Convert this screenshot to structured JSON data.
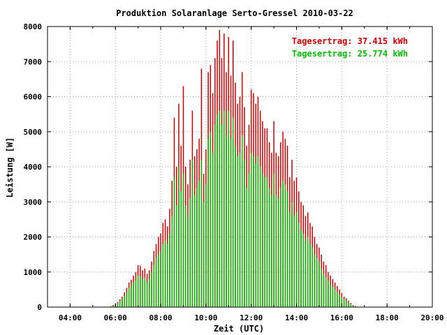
{
  "chart_data": {
    "type": "bar",
    "title": "Produktion Solaranlage Serto-Gressel 2010-03-22",
    "xlabel": "Zeit (UTC)",
    "ylabel": "Leistung [W]",
    "xlim": [
      3,
      20
    ],
    "ylim": [
      0,
      8000
    ],
    "grid": true,
    "legend_position": "top-right",
    "x_ticks": [
      "04:00",
      "06:00",
      "08:00",
      "10:00",
      "12:00",
      "14:00",
      "16:00",
      "18:00",
      "20:00"
    ],
    "x_tick_values": [
      4,
      6,
      8,
      10,
      12,
      14,
      16,
      18,
      20
    ],
    "y_ticks": [
      "0",
      "1000",
      "2000",
      "3000",
      "4000",
      "5000",
      "6000",
      "7000",
      "8000"
    ],
    "y_tick_values": [
      0,
      1000,
      2000,
      3000,
      4000,
      5000,
      6000,
      7000,
      8000
    ],
    "annotations": [
      {
        "text": "Tagesertrag: 37.415 kWh",
        "color": "#cc0000"
      },
      {
        "text": "Tagesertrag: 25.774 kWh",
        "color": "#00bb00"
      }
    ],
    "series": [
      {
        "color": "#cc0000",
        "x": [
          5.8,
          5.9,
          6.0,
          6.1,
          6.2,
          6.3,
          6.4,
          6.5,
          6.6,
          6.7,
          6.8,
          6.9,
          7.0,
          7.1,
          7.2,
          7.3,
          7.4,
          7.5,
          7.6,
          7.7,
          7.8,
          7.9,
          8.0,
          8.1,
          8.2,
          8.3,
          8.4,
          8.5,
          8.6,
          8.7,
          8.8,
          8.9,
          9.0,
          9.1,
          9.2,
          9.3,
          9.4,
          9.5,
          9.6,
          9.7,
          9.8,
          9.9,
          10.0,
          10.1,
          10.2,
          10.3,
          10.4,
          10.5,
          10.6,
          10.7,
          10.8,
          10.9,
          11.0,
          11.1,
          11.2,
          11.3,
          11.4,
          11.5,
          11.6,
          11.7,
          11.8,
          11.9,
          12.0,
          12.1,
          12.2,
          12.3,
          12.4,
          12.5,
          12.6,
          12.7,
          12.8,
          12.9,
          13.0,
          13.1,
          13.2,
          13.3,
          13.4,
          13.5,
          13.6,
          13.7,
          13.8,
          13.9,
          14.0,
          14.1,
          14.2,
          14.3,
          14.4,
          14.5,
          14.6,
          14.7,
          14.8,
          14.9,
          15.0,
          15.1,
          15.2,
          15.3,
          15.4,
          15.5,
          15.6,
          15.7,
          15.8,
          15.9,
          16.0,
          16.1,
          16.2,
          16.3,
          16.4,
          16.5,
          16.6,
          16.7,
          16.8,
          16.9,
          17.0,
          17.1,
          17.2,
          17.3,
          17.4
        ],
        "values": [
          30,
          60,
          100,
          150,
          220,
          300,
          420,
          550,
          700,
          780,
          900,
          1000,
          1200,
          1180,
          1050,
          1100,
          950,
          1050,
          1300,
          1600,
          1800,
          2000,
          2100,
          2400,
          2500,
          2300,
          2800,
          3600,
          5400,
          4000,
          5800,
          4600,
          6300,
          4000,
          3500,
          4200,
          5600,
          4300,
          4500,
          4800,
          6800,
          3800,
          4500,
          6700,
          6900,
          6100,
          7100,
          7600,
          7900,
          7100,
          7800,
          6700,
          7700,
          6600,
          7600,
          6400,
          5800,
          6000,
          6700,
          5700,
          4600,
          5200,
          6200,
          6100,
          5800,
          6000,
          5600,
          5300,
          5100,
          5100,
          4700,
          4400,
          5300,
          4400,
          4300,
          4700,
          5000,
          4800,
          4600,
          3700,
          4200,
          3600,
          3700,
          3300,
          3000,
          2900,
          2600,
          2700,
          2400,
          2300,
          2000,
          1800,
          1700,
          1500,
          1300,
          1200,
          1000,
          900,
          800,
          700,
          600,
          500,
          400,
          300,
          250,
          180,
          120,
          60,
          30,
          10,
          5,
          3,
          2,
          1,
          1,
          0,
          0
        ]
      },
      {
        "color": "#00bb00",
        "x": [
          5.8,
          5.9,
          6.0,
          6.1,
          6.2,
          6.3,
          6.4,
          6.5,
          6.6,
          6.7,
          6.8,
          6.9,
          7.0,
          7.1,
          7.2,
          7.3,
          7.4,
          7.5,
          7.6,
          7.7,
          7.8,
          7.9,
          8.0,
          8.1,
          8.2,
          8.3,
          8.4,
          8.5,
          8.6,
          8.7,
          8.8,
          8.9,
          9.0,
          9.1,
          9.2,
          9.3,
          9.4,
          9.5,
          9.6,
          9.7,
          9.8,
          9.9,
          10.0,
          10.1,
          10.2,
          10.3,
          10.4,
          10.5,
          10.6,
          10.7,
          10.8,
          10.9,
          11.0,
          11.1,
          11.2,
          11.3,
          11.4,
          11.5,
          11.6,
          11.7,
          11.8,
          11.9,
          12.0,
          12.1,
          12.2,
          12.3,
          12.4,
          12.5,
          12.6,
          12.7,
          12.8,
          12.9,
          13.0,
          13.1,
          13.2,
          13.3,
          13.4,
          13.5,
          13.6,
          13.7,
          13.8,
          13.9,
          14.0,
          14.1,
          14.2,
          14.3,
          14.4,
          14.5,
          14.6,
          14.7,
          14.8,
          14.9,
          15.0,
          15.1,
          15.2,
          15.3,
          15.4,
          15.5,
          15.6,
          15.7,
          15.8,
          15.9,
          16.0,
          16.1,
          16.2,
          16.3,
          16.4,
          16.5,
          16.6,
          16.7,
          16.8,
          16.9,
          17.0,
          17.1,
          17.2,
          17.3,
          17.4
        ],
        "values": [
          20,
          40,
          70,
          110,
          160,
          230,
          320,
          420,
          550,
          620,
          700,
          780,
          900,
          880,
          800,
          850,
          700,
          800,
          1000,
          1200,
          1400,
          1500,
          1600,
          1800,
          1900,
          1800,
          2100,
          2600,
          3700,
          2900,
          4000,
          3300,
          3800,
          2900,
          2600,
          3100,
          4200,
          3200,
          3400,
          3600,
          4200,
          3000,
          3500,
          4800,
          5000,
          4400,
          5200,
          5500,
          5600,
          5200,
          5600,
          4900,
          5600,
          4800,
          5400,
          4600,
          4300,
          4400,
          4900,
          4200,
          3400,
          3800,
          4400,
          4300,
          4100,
          4300,
          4000,
          3800,
          3700,
          3700,
          3400,
          3200,
          3800,
          3200,
          3100,
          3400,
          3600,
          3500,
          3300,
          2700,
          3000,
          2600,
          2700,
          2400,
          2200,
          2100,
          1900,
          2000,
          1800,
          1700,
          1500,
          1400,
          1300,
          1100,
          950,
          850,
          750,
          650,
          580,
          500,
          430,
          360,
          290,
          220,
          180,
          130,
          90,
          45,
          25,
          8,
          4,
          2,
          1,
          1,
          1,
          0,
          0
        ]
      }
    ]
  }
}
